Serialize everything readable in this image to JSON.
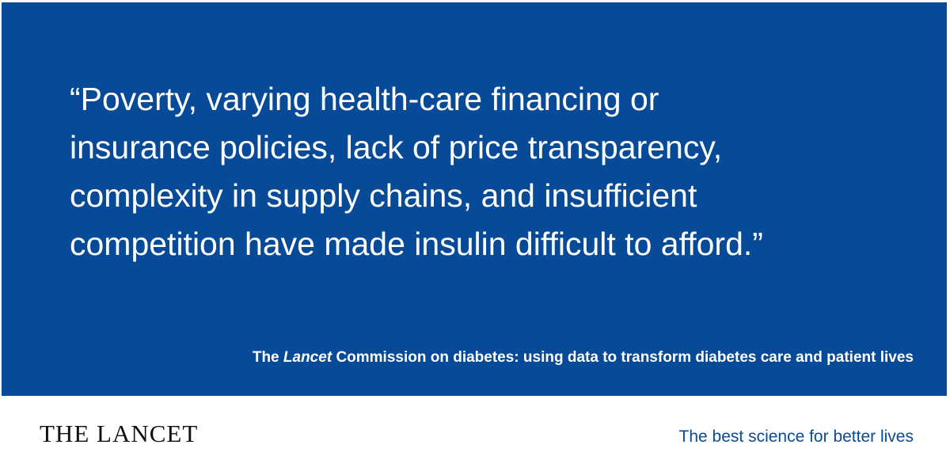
{
  "quote": {
    "lines": [
      "“Poverty, varying health-care financing or",
      "insurance policies, lack of price transparency,",
      "complexity in supply chains, and insufficient",
      "competition have made insulin difficult to afford.”"
    ]
  },
  "source": {
    "before": "The",
    "italic": "Lancet",
    "after": "Commission on diabetes: using data to transform diabetes care and patient lives"
  },
  "footer": {
    "brand": "THE LANCET",
    "tagline": "The best science for better lives"
  }
}
